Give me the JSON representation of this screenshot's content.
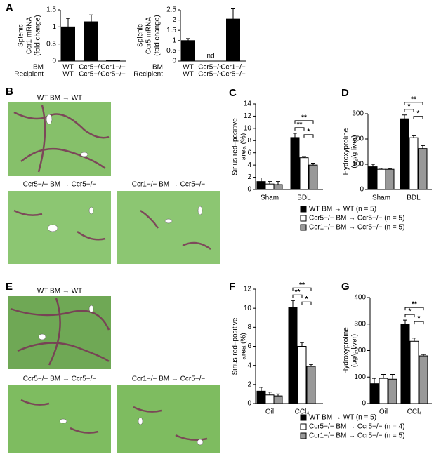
{
  "figure": {
    "panels": [
      "A",
      "B",
      "C",
      "D",
      "E",
      "F",
      "G"
    ],
    "micrograph_labels": {
      "B": [
        "WT BM → WT",
        "Ccr5−/− BM → Ccr5−/−",
        "Ccr1−/− BM → Ccr5−/−"
      ],
      "E": [
        "WT BM → WT",
        "Ccr5−/− BM → Ccr5−/−",
        "Ccr1−/− BM → Ccr5−/−"
      ]
    }
  },
  "chart_data": [
    {
      "type": "bar",
      "ylabel": [
        "Splenic",
        "Ccr1 mRNA",
        "(fold change)"
      ],
      "row_labels": [
        "BM",
        "Recipient"
      ],
      "categories": [
        "WT",
        "Ccr5−/−",
        "Ccr1−/−"
      ],
      "recipients": [
        "WT",
        "Ccr5−/−",
        "Ccr5−/−"
      ],
      "values": [
        1.0,
        1.15,
        0.02
      ],
      "errors": [
        0.25,
        0.2,
        0.01
      ],
      "color": "#000000",
      "ylim": [
        0,
        1.5
      ],
      "yticks": [
        0,
        0.5,
        1,
        1.5
      ]
    },
    {
      "type": "bar",
      "ylabel": [
        "Splenic",
        "Ccr5 mRNA",
        "(fold change)"
      ],
      "row_labels": [
        "BM",
        "Recipient"
      ],
      "categories": [
        "WT",
        "Ccr5−/−",
        "Ccr1−/−"
      ],
      "recipients": [
        "WT",
        "Ccr5−/−",
        "Ccr5−/−"
      ],
      "values": [
        1.0,
        null,
        2.05
      ],
      "errors": [
        0.1,
        null,
        0.5
      ],
      "value_labels": [
        null,
        "nd",
        null
      ],
      "color": "#000000",
      "ylim": [
        0,
        2.5
      ],
      "yticks": [
        0,
        0.5,
        1,
        1.5,
        2,
        2.5
      ]
    },
    {
      "type": "grouped-bar",
      "ylabel": [
        "Sirius red–positive",
        "area (%)"
      ],
      "categories": [
        "Sham",
        "BDL"
      ],
      "series": [
        {
          "name": "WT BM → WT (n = 5)",
          "color": "#000000",
          "values": [
            1.3,
            8.5
          ],
          "errors": [
            0.6,
            0.7
          ]
        },
        {
          "name": "Ccr5−/− BM → Ccr5−/− (n = 5)",
          "color": "#ffffff",
          "values": [
            0.9,
            5.2
          ],
          "errors": [
            0.4,
            0.2
          ]
        },
        {
          "name": "Ccr1−/− BM → Ccr5−/− (n = 5)",
          "color": "#999999",
          "values": [
            0.8,
            4.0
          ],
          "errors": [
            0.5,
            0.3
          ]
        }
      ],
      "significance": [
        "**",
        "**",
        "*"
      ],
      "ylim": [
        0,
        14
      ],
      "yticks": [
        0,
        2,
        4,
        6,
        8,
        10,
        12,
        14
      ]
    },
    {
      "type": "grouped-bar",
      "ylabel": [
        "Hydroxyproline",
        "(ug/g liver)"
      ],
      "categories": [
        "Sham",
        "BDL"
      ],
      "series": [
        {
          "color": "#000000",
          "values": [
            90,
            280
          ],
          "errors": [
            10,
            15
          ]
        },
        {
          "color": "#ffffff",
          "values": [
            80,
            205
          ],
          "errors": [
            4,
            8
          ]
        },
        {
          "color": "#999999",
          "values": [
            80,
            162
          ],
          "errors": [
            3,
            12
          ]
        }
      ],
      "significance": [
        "**",
        "*",
        "*"
      ],
      "ylim": [
        0,
        300
      ],
      "yticks": [
        0,
        100,
        200,
        300
      ]
    },
    {
      "type": "grouped-bar",
      "ylabel": [
        "Sirius red–positive",
        "area (%)"
      ],
      "categories": [
        "Oil",
        "CCl₄"
      ],
      "series": [
        {
          "name": "WT BM → WT (n = 5)",
          "color": "#000000",
          "values": [
            1.3,
            10.1
          ],
          "errors": [
            0.4,
            0.7
          ]
        },
        {
          "name": "Ccr5−/− BM → Ccr5−/− (n = 4)",
          "color": "#ffffff",
          "values": [
            0.9,
            6.0
          ],
          "errors": [
            0.3,
            0.4
          ]
        },
        {
          "name": "Ccr1−/− BM → Ccr5−/− (n = 5)",
          "color": "#999999",
          "values": [
            0.8,
            3.9
          ],
          "errors": [
            0.2,
            0.2
          ]
        }
      ],
      "significance": [
        "**",
        "**",
        "*"
      ],
      "ylim": [
        0,
        12
      ],
      "yticks": [
        0,
        2,
        4,
        6,
        8,
        10,
        12
      ]
    },
    {
      "type": "grouped-bar",
      "ylabel": [
        "Hydroxyproline",
        "(ug/g liver)"
      ],
      "categories": [
        "Oil",
        "CCl₄"
      ],
      "series": [
        {
          "color": "#000000",
          "values": [
            75,
            300
          ],
          "errors": [
            20,
            15
          ]
        },
        {
          "color": "#ffffff",
          "values": [
            95,
            235
          ],
          "errors": [
            15,
            12
          ]
        },
        {
          "color": "#999999",
          "values": [
            92,
            180
          ],
          "errors": [
            18,
            5
          ]
        }
      ],
      "significance": [
        "**",
        "*",
        "*"
      ],
      "ylim": [
        0,
        400
      ],
      "yticks": [
        0,
        100,
        200,
        300,
        400
      ]
    }
  ]
}
